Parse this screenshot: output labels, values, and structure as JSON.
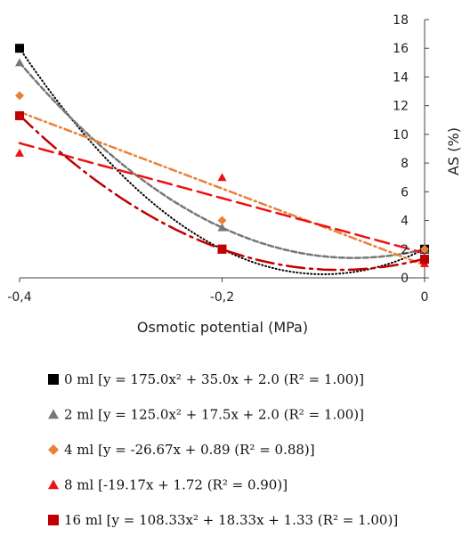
{
  "chart_data": {
    "type": "scatter",
    "xlabel": "Osmotic potential  (MPa)",
    "ylabel": "AS (%)",
    "xlim": [
      -0.4,
      0
    ],
    "ylim": [
      0,
      18
    ],
    "x_ticks": [
      "-0,4",
      "-0,2",
      "0"
    ],
    "y_ticks": [
      "0",
      "2",
      "4",
      "6",
      "8",
      "10",
      "12",
      "14",
      "16",
      "18"
    ],
    "x_tick_values": [
      -0.4,
      -0.2,
      0
    ],
    "y_tick_values": [
      0,
      2,
      4,
      6,
      8,
      10,
      12,
      14,
      16,
      18
    ],
    "y_axis_position": "right",
    "grid": false,
    "legend_position": "bottom",
    "series": [
      {
        "name": "0 ml [y = 175.0x² + 35.0x + 2.0 (R² = 1.00)]",
        "x": [
          -0.4,
          -0.2,
          0
        ],
        "y": [
          16,
          2,
          2
        ],
        "marker": "square",
        "color": "#000000",
        "trend": {
          "type": "poly2",
          "coef": [
            175.0,
            35.0,
            2.0
          ],
          "dash": "1,3",
          "width": 2
        }
      },
      {
        "name": "2 ml [y = 125.0x² + 17.5x + 2.0 (R² = 1.00)]",
        "x": [
          -0.4,
          -0.2,
          0
        ],
        "y": [
          15,
          3.5,
          2
        ],
        "marker": "triangle",
        "color": "#777777",
        "trend": {
          "type": "poly2",
          "coef": [
            125.0,
            17.5,
            2.0
          ],
          "dash": "6,3",
          "width": 2.5
        }
      },
      {
        "name": "4 ml [y = -26.67x + 0.89 (R² = 0.88)]",
        "x": [
          -0.4,
          -0.2,
          0
        ],
        "y": [
          12.7,
          4,
          2
        ],
        "marker": "diamond",
        "color": "#e8823a",
        "trend": {
          "type": "linear",
          "coef": [
            -26.67,
            0.89
          ],
          "dash": "8,4,2,4",
          "width": 2.5
        }
      },
      {
        "name": "8 ml [-19.17x + 1.72 (R² = 0.90)]",
        "x": [
          -0.4,
          -0.2,
          0
        ],
        "y": [
          8.7,
          7,
          1
        ],
        "marker": "triangle",
        "color": "#ee1111",
        "trend": {
          "type": "linear",
          "coef": [
            -19.17,
            1.72
          ],
          "dash": "16,7",
          "width": 2.5
        }
      },
      {
        "name": "16 ml [y = 108.33x² + 18.33x + 1.33 (R² = 1.00)]",
        "x": [
          -0.4,
          -0.2,
          0
        ],
        "y": [
          11.3,
          2,
          1.3
        ],
        "marker": "square",
        "color": "#c00000",
        "trend": {
          "type": "poly2",
          "coef": [
            108.33,
            18.33,
            1.33
          ],
          "dash": "20,6,3,6",
          "width": 2.5
        }
      }
    ]
  }
}
